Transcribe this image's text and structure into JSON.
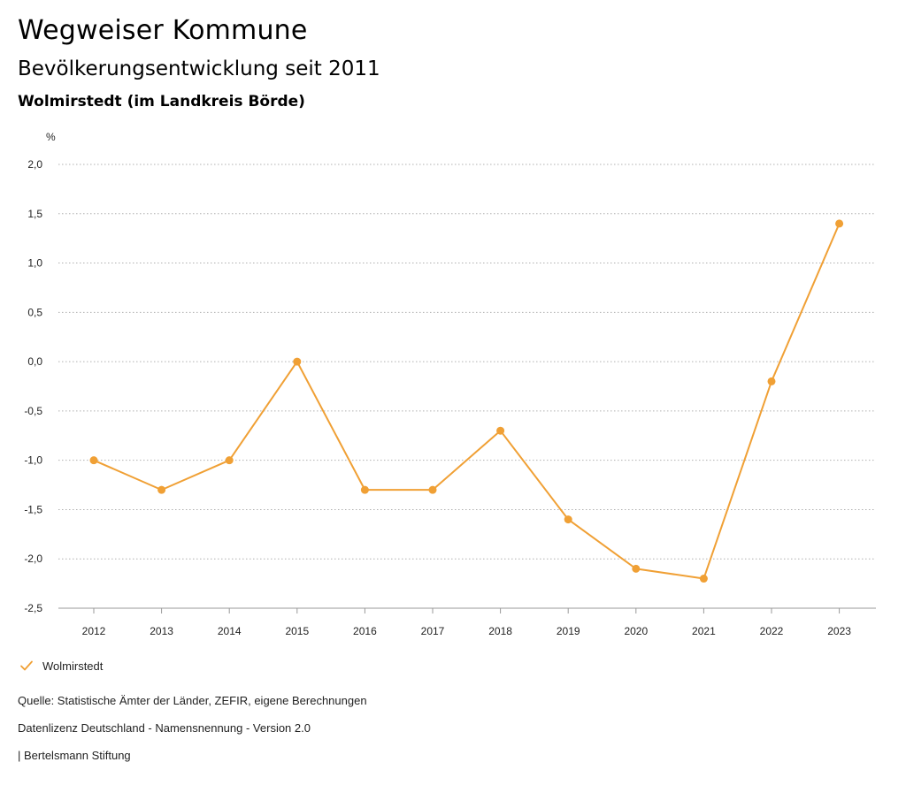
{
  "header": {
    "title": "Wegweiser Kommune",
    "subtitle": "Bevölkerungsentwicklung seit 2011",
    "region": "Wolmirstedt (im Landkreis Börde)"
  },
  "legend": {
    "label": "Wolmirstedt",
    "icon": "checkmark-icon"
  },
  "footer": {
    "source": "Quelle: Statistische Ämter der Länder, ZEFIR, eigene Berechnungen",
    "license": "Datenlizenz Deutschland - Namensnennung - Version 2.0",
    "credit": "| Bertelsmann Stiftung"
  },
  "colors": {
    "series": "#f0a035",
    "grid": "#b0b0b0",
    "text": "#222222"
  },
  "chart_data": {
    "type": "line",
    "title": "Bevölkerungsentwicklung seit 2011",
    "subtitle": "Wolmirstedt (im Landkreis Börde)",
    "xlabel": "",
    "ylabel": "%",
    "x": [
      "2012",
      "2013",
      "2014",
      "2015",
      "2016",
      "2017",
      "2018",
      "2019",
      "2020",
      "2021",
      "2022",
      "2023"
    ],
    "series": [
      {
        "name": "Wolmirstedt",
        "values": [
          -1.0,
          -1.3,
          -1.0,
          0.0,
          -1.3,
          -1.3,
          -0.7,
          -1.6,
          -2.1,
          -2.2,
          -0.2,
          1.4
        ]
      }
    ],
    "ylim": [
      -2.5,
      2.0
    ],
    "yticks": [
      2.0,
      1.5,
      1.0,
      0.5,
      0.0,
      -0.5,
      -1.0,
      -1.5,
      -2.0,
      -2.5
    ],
    "ytick_labels": [
      "2,0",
      "1,5",
      "1,0",
      "0,5",
      "0,0",
      "-0,5",
      "-1,0",
      "-1,5",
      "-2,0",
      "-2,5"
    ],
    "grid": true,
    "legend_position": "bottom-left"
  }
}
